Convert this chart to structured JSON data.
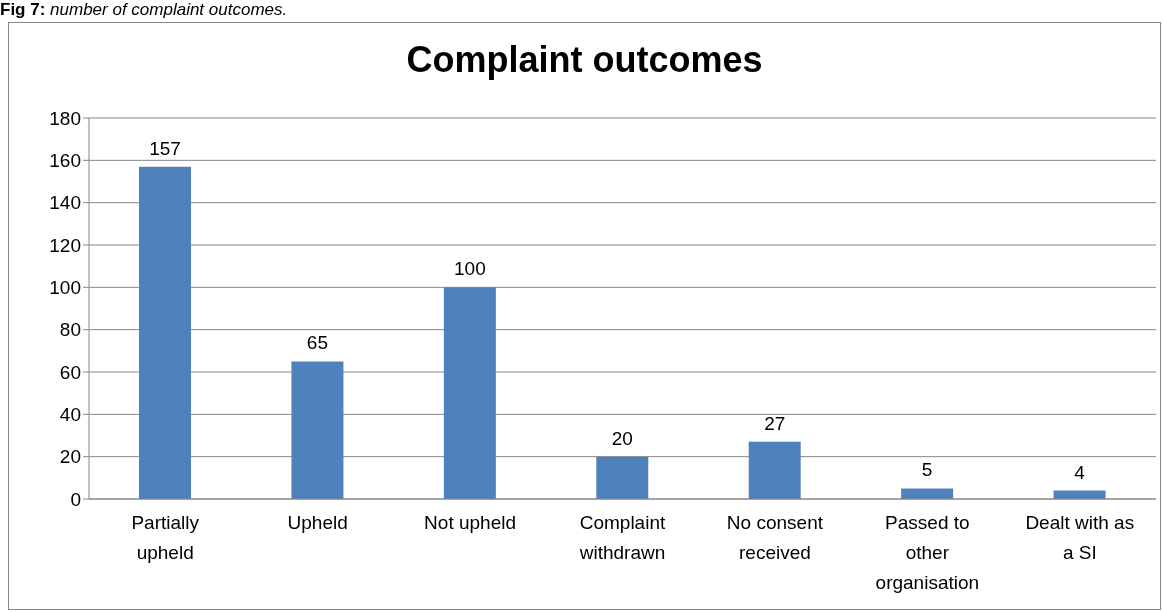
{
  "chart_data": {
    "type": "bar",
    "title": "Complaint outcomes",
    "annotations": [
      "Fig 7: number of complaint outcomes."
    ],
    "categories": [
      "Partially upheld",
      "Upheld",
      "Not upheld",
      "Complaint withdrawn",
      "No consent received",
      "Passed to other organisation",
      "Dealt with as a SI"
    ],
    "values": [
      157,
      65,
      100,
      20,
      27,
      5,
      4
    ],
    "color": "#4f81bd",
    "ylim": [
      0,
      180
    ],
    "yticks": [
      0,
      20,
      40,
      60,
      80,
      100,
      120,
      140,
      160,
      180
    ],
    "grid": "y",
    "data_labels": true
  }
}
